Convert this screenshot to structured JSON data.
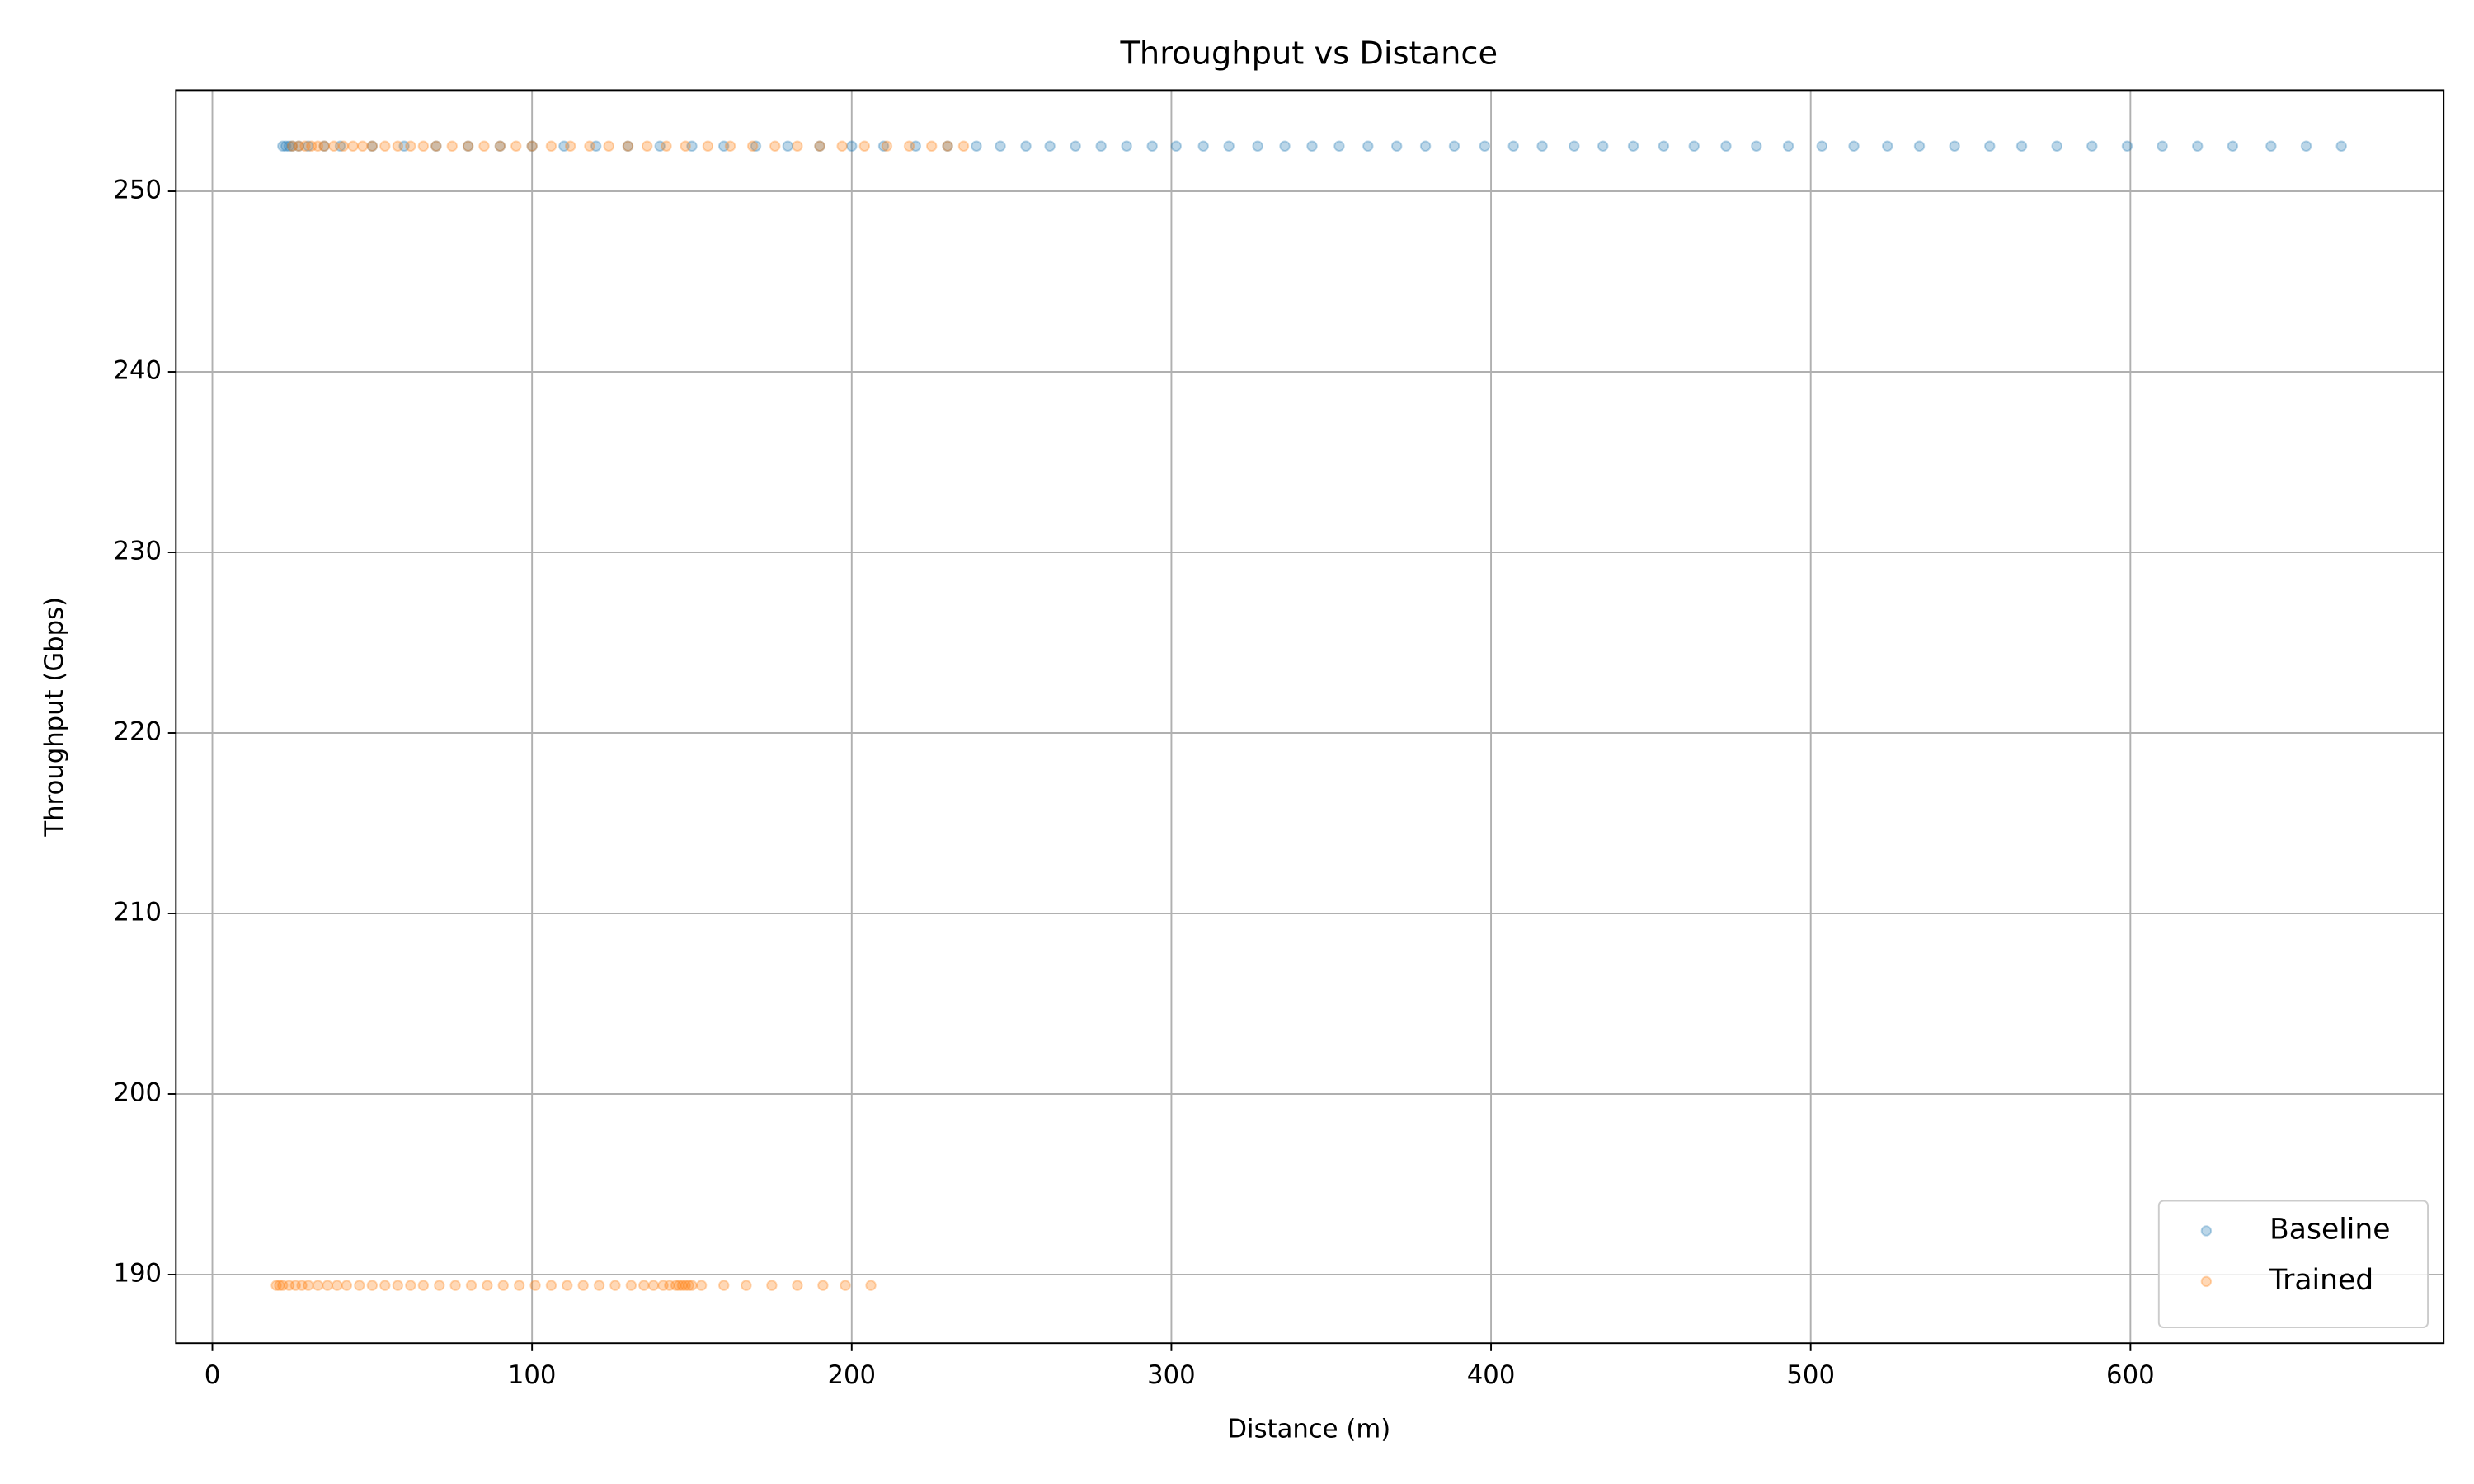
{
  "chart_data": {
    "type": "scatter",
    "title": "Throughput vs Distance",
    "xlabel": "Distance (m)",
    "ylabel": "Throughput (Gbps)",
    "xlim": [
      -11.4,
      698
    ],
    "ylim": [
      186.2,
      255.6
    ],
    "xticks": [
      0,
      100,
      200,
      300,
      400,
      500,
      600
    ],
    "yticks": [
      190,
      200,
      210,
      220,
      230,
      240,
      250
    ],
    "grid": true,
    "legend": "lower right",
    "alpha": 0.3,
    "series": [
      {
        "name": "Baseline",
        "color": "#1f77b4",
        "x": [
          22,
          23,
          24,
          25,
          27,
          30,
          35,
          40,
          50,
          60,
          70,
          80,
          90,
          100,
          110,
          120,
          130,
          140,
          150,
          160,
          170,
          180,
          190,
          200,
          210,
          220,
          230,
          239,
          246.5,
          254.5,
          262,
          270,
          278,
          286,
          294,
          301.5,
          310,
          318,
          327,
          335.5,
          344,
          352.5,
          361.5,
          370.5,
          379.5,
          388.5,
          398,
          407,
          416,
          426,
          435,
          444.5,
          454,
          463.5,
          473.5,
          483,
          493,
          503.5,
          513.5,
          524,
          534,
          545,
          556,
          566,
          577,
          588,
          599,
          610,
          621,
          632,
          644,
          655,
          666
        ],
        "values": [
          252.5,
          252.5,
          252.5,
          252.5,
          252.5,
          252.5,
          252.5,
          252.5,
          252.5,
          252.5,
          252.5,
          252.5,
          252.5,
          252.5,
          252.5,
          252.5,
          252.5,
          252.5,
          252.5,
          252.5,
          252.5,
          252.5,
          252.5,
          252.5,
          252.5,
          252.5,
          252.5,
          252.5,
          252.5,
          252.5,
          252.5,
          252.5,
          252.5,
          252.5,
          252.5,
          252.5,
          252.5,
          252.5,
          252.5,
          252.5,
          252.5,
          252.5,
          252.5,
          252.5,
          252.5,
          252.5,
          252.5,
          252.5,
          252.5,
          252.5,
          252.5,
          252.5,
          252.5,
          252.5,
          252.5,
          252.5,
          252.5,
          252.5,
          252.5,
          252.5,
          252.5,
          252.5,
          252.5,
          252.5,
          252.5,
          252.5,
          252.5,
          252.5,
          252.5,
          252.5,
          252.5,
          252.5,
          252.5
        ]
      },
      {
        "name": "Trained",
        "color": "#ff7f0e",
        "x": [
          25,
          27,
          29,
          31,
          33,
          35,
          38,
          41,
          44,
          47,
          50,
          54,
          58,
          62,
          66,
          70,
          75,
          80,
          85,
          90,
          95,
          100,
          106,
          112,
          118,
          124,
          130,
          136,
          142,
          148,
          155,
          162,
          169,
          176,
          183,
          190,
          197,
          204,
          211,
          218,
          225,
          230,
          235,
          20,
          21,
          22,
          24,
          26,
          28,
          30,
          33,
          36,
          39,
          42,
          46,
          50,
          54,
          58,
          62,
          66,
          71,
          76,
          81,
          86,
          91,
          96,
          101,
          106,
          111,
          116,
          121,
          126,
          131,
          135,
          138,
          141,
          143,
          145,
          146,
          147,
          148,
          149,
          150,
          153,
          160,
          167,
          175,
          183,
          191,
          198,
          206
        ],
        "values": [
          252.5,
          252.5,
          252.5,
          252.5,
          252.5,
          252.5,
          252.5,
          252.5,
          252.5,
          252.5,
          252.5,
          252.5,
          252.5,
          252.5,
          252.5,
          252.5,
          252.5,
          252.5,
          252.5,
          252.5,
          252.5,
          252.5,
          252.5,
          252.5,
          252.5,
          252.5,
          252.5,
          252.5,
          252.5,
          252.5,
          252.5,
          252.5,
          252.5,
          252.5,
          252.5,
          252.5,
          252.5,
          252.5,
          252.5,
          252.5,
          252.5,
          252.5,
          252.5,
          189.4,
          189.4,
          189.4,
          189.4,
          189.4,
          189.4,
          189.4,
          189.4,
          189.4,
          189.4,
          189.4,
          189.4,
          189.4,
          189.4,
          189.4,
          189.4,
          189.4,
          189.4,
          189.4,
          189.4,
          189.4,
          189.4,
          189.4,
          189.4,
          189.4,
          189.4,
          189.4,
          189.4,
          189.4,
          189.4,
          189.4,
          189.4,
          189.4,
          189.4,
          189.4,
          189.4,
          189.4,
          189.4,
          189.4,
          189.4,
          189.4,
          189.4,
          189.4,
          189.4,
          189.4,
          189.4,
          189.4,
          189.4
        ]
      }
    ]
  }
}
